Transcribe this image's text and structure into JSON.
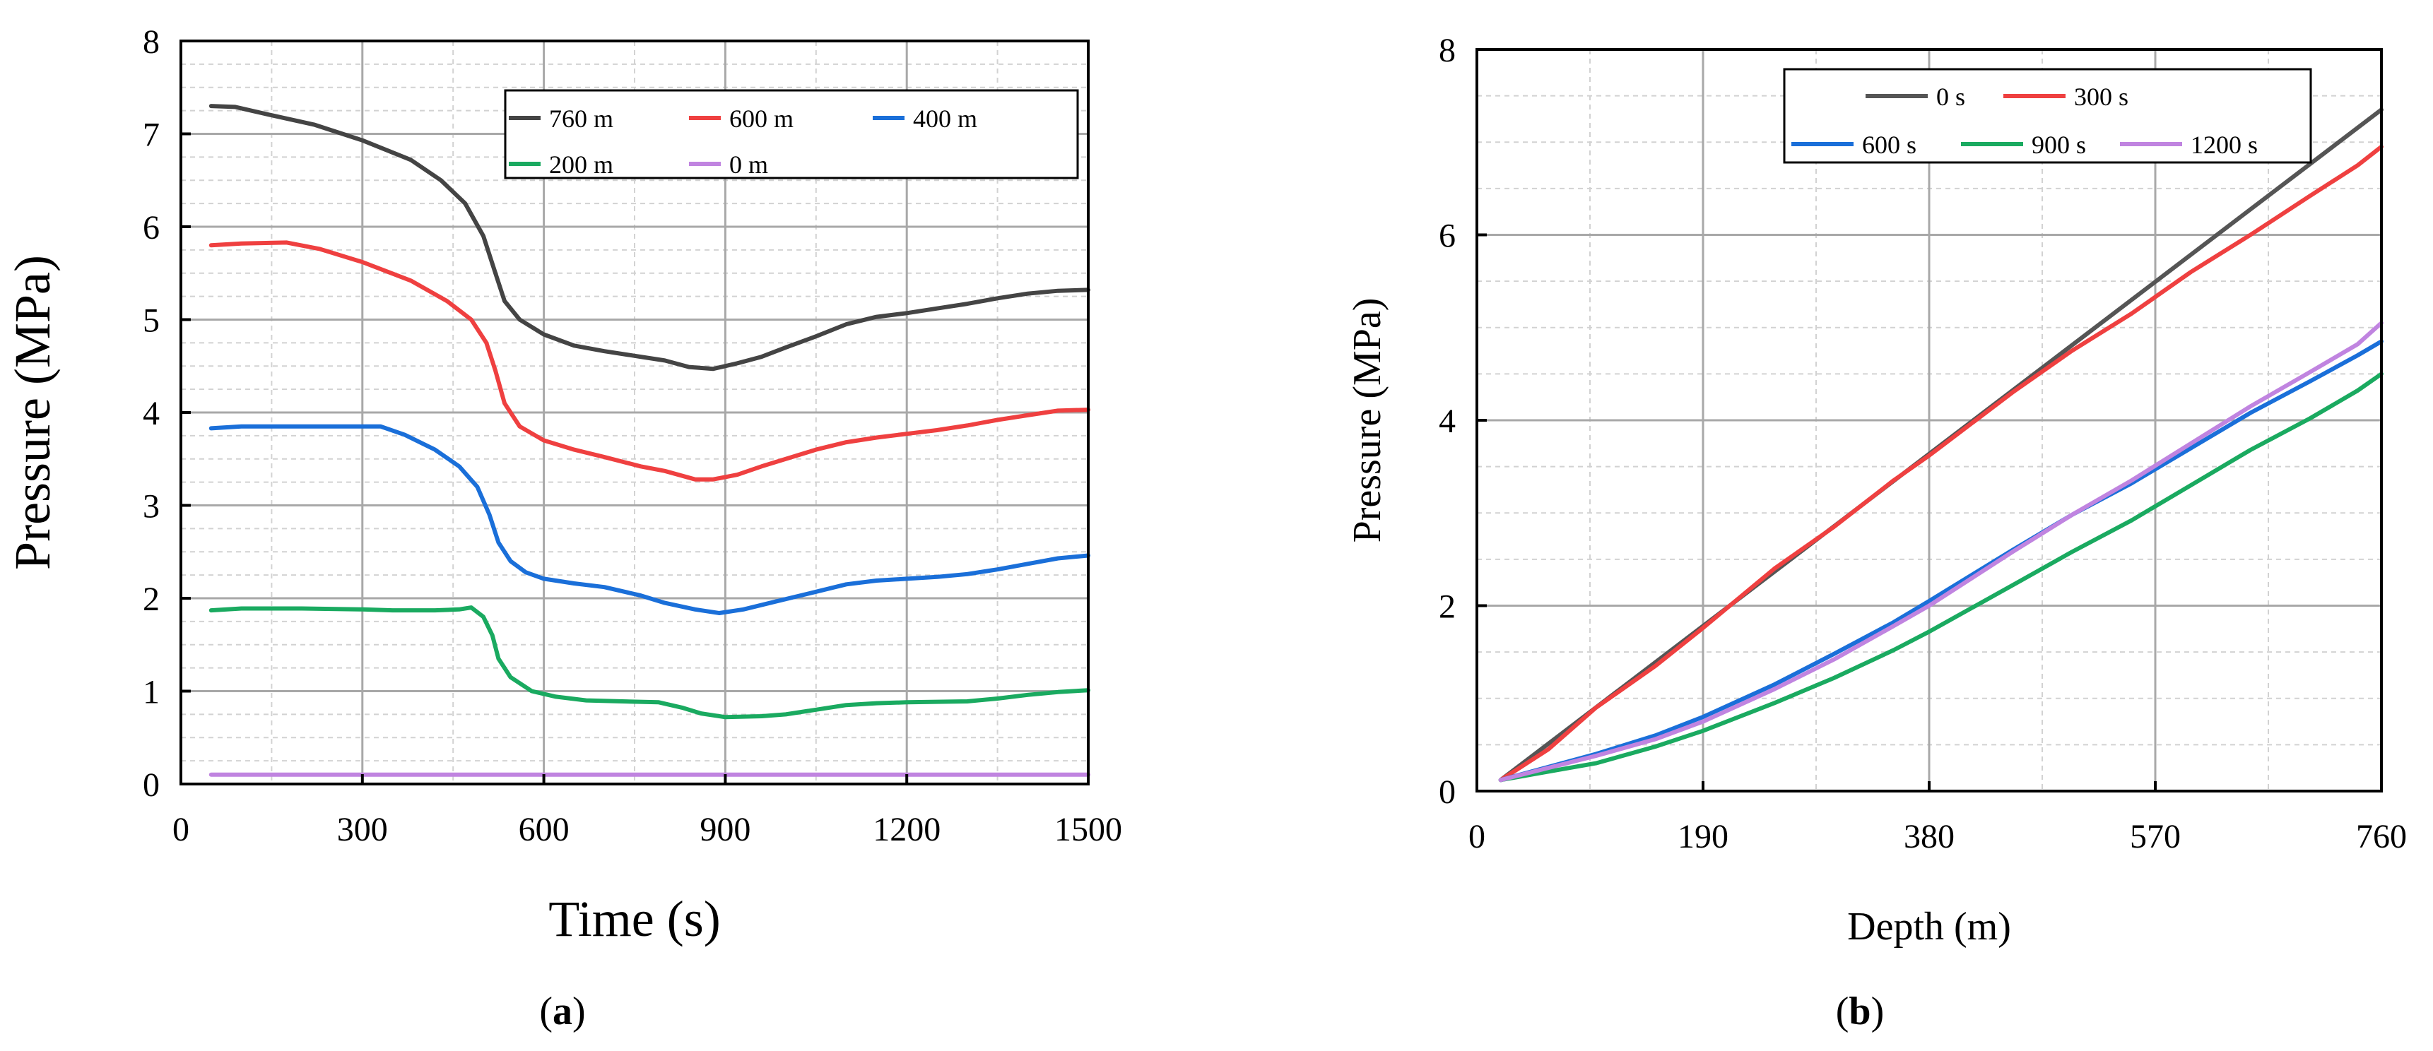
{
  "chart_data": [
    {
      "type": "line",
      "panel_label_letter": "a",
      "xlabel": "Time (s)",
      "ylabel": "Pressure (MPa)",
      "xlim": [
        0,
        1500
      ],
      "ylim": [
        0,
        8
      ],
      "xticks": [
        0,
        300,
        600,
        900,
        1200,
        1500
      ],
      "yticks": [
        0,
        1,
        2,
        3,
        4,
        5,
        6,
        7,
        8
      ],
      "x_minor_step": 150,
      "y_minor_step": 0.25,
      "grid": true,
      "legend_position": "top-right",
      "series": [
        {
          "name": "760 m",
          "color": "#444444",
          "points": [
            [
              50,
              7.3
            ],
            [
              90,
              7.29
            ],
            [
              150,
              7.2
            ],
            [
              220,
              7.1
            ],
            [
              300,
              6.93
            ],
            [
              380,
              6.72
            ],
            [
              430,
              6.5
            ],
            [
              470,
              6.25
            ],
            [
              500,
              5.9
            ],
            [
              520,
              5.5
            ],
            [
              535,
              5.2
            ],
            [
              560,
              5.0
            ],
            [
              600,
              4.84
            ],
            [
              650,
              4.72
            ],
            [
              700,
              4.66
            ],
            [
              760,
              4.6
            ],
            [
              800,
              4.56
            ],
            [
              840,
              4.49
            ],
            [
              880,
              4.47
            ],
            [
              920,
              4.53
            ],
            [
              960,
              4.6
            ],
            [
              1000,
              4.7
            ],
            [
              1050,
              4.82
            ],
            [
              1100,
              4.95
            ],
            [
              1150,
              5.03
            ],
            [
              1200,
              5.07
            ],
            [
              1250,
              5.12
            ],
            [
              1300,
              5.17
            ],
            [
              1350,
              5.23
            ],
            [
              1400,
              5.28
            ],
            [
              1450,
              5.31
            ],
            [
              1500,
              5.32
            ]
          ]
        },
        {
          "name": "600 m",
          "color": "#ef4040",
          "points": [
            [
              50,
              5.8
            ],
            [
              100,
              5.82
            ],
            [
              175,
              5.83
            ],
            [
              230,
              5.76
            ],
            [
              300,
              5.62
            ],
            [
              380,
              5.42
            ],
            [
              440,
              5.2
            ],
            [
              480,
              5.0
            ],
            [
              505,
              4.75
            ],
            [
              520,
              4.45
            ],
            [
              535,
              4.1
            ],
            [
              560,
              3.85
            ],
            [
              600,
              3.7
            ],
            [
              650,
              3.6
            ],
            [
              700,
              3.52
            ],
            [
              760,
              3.42
            ],
            [
              800,
              3.37
            ],
            [
              850,
              3.28
            ],
            [
              880,
              3.28
            ],
            [
              920,
              3.33
            ],
            [
              960,
              3.42
            ],
            [
              1000,
              3.5
            ],
            [
              1050,
              3.6
            ],
            [
              1100,
              3.68
            ],
            [
              1150,
              3.73
            ],
            [
              1200,
              3.77
            ],
            [
              1250,
              3.81
            ],
            [
              1300,
              3.86
            ],
            [
              1350,
              3.92
            ],
            [
              1400,
              3.97
            ],
            [
              1450,
              4.02
            ],
            [
              1500,
              4.03
            ]
          ]
        },
        {
          "name": "400 m",
          "color": "#1a6fd9",
          "points": [
            [
              50,
              3.83
            ],
            [
              100,
              3.85
            ],
            [
              200,
              3.85
            ],
            [
              330,
              3.85
            ],
            [
              370,
              3.76
            ],
            [
              420,
              3.6
            ],
            [
              460,
              3.42
            ],
            [
              490,
              3.2
            ],
            [
              510,
              2.9
            ],
            [
              525,
              2.6
            ],
            [
              545,
              2.4
            ],
            [
              570,
              2.28
            ],
            [
              600,
              2.21
            ],
            [
              650,
              2.16
            ],
            [
              700,
              2.12
            ],
            [
              760,
              2.03
            ],
            [
              800,
              1.95
            ],
            [
              850,
              1.88
            ],
            [
              890,
              1.84
            ],
            [
              930,
              1.88
            ],
            [
              980,
              1.96
            ],
            [
              1050,
              2.07
            ],
            [
              1100,
              2.15
            ],
            [
              1150,
              2.19
            ],
            [
              1200,
              2.21
            ],
            [
              1250,
              2.23
            ],
            [
              1300,
              2.26
            ],
            [
              1350,
              2.31
            ],
            [
              1400,
              2.37
            ],
            [
              1450,
              2.43
            ],
            [
              1500,
              2.46
            ]
          ]
        },
        {
          "name": "200 m",
          "color": "#1aaa60",
          "points": [
            [
              50,
              1.87
            ],
            [
              100,
              1.89
            ],
            [
              200,
              1.89
            ],
            [
              300,
              1.88
            ],
            [
              350,
              1.87
            ],
            [
              420,
              1.87
            ],
            [
              460,
              1.88
            ],
            [
              480,
              1.9
            ],
            [
              500,
              1.8
            ],
            [
              515,
              1.6
            ],
            [
              525,
              1.35
            ],
            [
              545,
              1.15
            ],
            [
              580,
              1.0
            ],
            [
              620,
              0.94
            ],
            [
              670,
              0.9
            ],
            [
              730,
              0.89
            ],
            [
              790,
              0.88
            ],
            [
              830,
              0.82
            ],
            [
              860,
              0.76
            ],
            [
              900,
              0.72
            ],
            [
              960,
              0.73
            ],
            [
              1000,
              0.75
            ],
            [
              1050,
              0.8
            ],
            [
              1100,
              0.85
            ],
            [
              1150,
              0.87
            ],
            [
              1200,
              0.88
            ],
            [
              1300,
              0.89
            ],
            [
              1350,
              0.92
            ],
            [
              1400,
              0.96
            ],
            [
              1450,
              0.99
            ],
            [
              1500,
              1.01
            ]
          ]
        },
        {
          "name": "0 m",
          "color": "#c084e0",
          "points": [
            [
              50,
              0.1
            ],
            [
              1500,
              0.1
            ]
          ]
        }
      ]
    },
    {
      "type": "line",
      "panel_label_letter": "b",
      "xlabel": "Depth (m)",
      "ylabel": "Pressure (MPa)",
      "xlim": [
        0,
        760
      ],
      "ylim": [
        0,
        8
      ],
      "xticks": [
        0,
        190,
        380,
        570,
        760
      ],
      "yticks": [
        0,
        2,
        4,
        6,
        8
      ],
      "x_minor_step": 95,
      "y_minor_step": 0.5,
      "grid": true,
      "legend_position": "top-center",
      "series": [
        {
          "name": "0 s",
          "color": "#555555",
          "points": [
            [
              20,
              0.12
            ],
            [
              760,
              7.35
            ]
          ]
        },
        {
          "name": "300 s",
          "color": "#ef4040",
          "points": [
            [
              20,
              0.12
            ],
            [
              60,
              0.45
            ],
            [
              100,
              0.9
            ],
            [
              150,
              1.35
            ],
            [
              190,
              1.76
            ],
            [
              250,
              2.4
            ],
            [
              300,
              2.85
            ],
            [
              350,
              3.35
            ],
            [
              380,
              3.62
            ],
            [
              450,
              4.3
            ],
            [
              500,
              4.75
            ],
            [
              550,
              5.15
            ],
            [
              600,
              5.6
            ],
            [
              650,
              6.0
            ],
            [
              700,
              6.42
            ],
            [
              740,
              6.75
            ],
            [
              760,
              6.95
            ]
          ]
        },
        {
          "name": "600 s",
          "color": "#1a6fd9",
          "points": [
            [
              20,
              0.12
            ],
            [
              100,
              0.4
            ],
            [
              150,
              0.6
            ],
            [
              190,
              0.8
            ],
            [
              250,
              1.15
            ],
            [
              300,
              1.48
            ],
            [
              350,
              1.82
            ],
            [
              380,
              2.05
            ],
            [
              450,
              2.6
            ],
            [
              500,
              2.98
            ],
            [
              550,
              3.32
            ],
            [
              600,
              3.7
            ],
            [
              650,
              4.08
            ],
            [
              700,
              4.42
            ],
            [
              740,
              4.7
            ],
            [
              760,
              4.85
            ]
          ]
        },
        {
          "name": "900 s",
          "color": "#1aaa60",
          "points": [
            [
              20,
              0.12
            ],
            [
              100,
              0.3
            ],
            [
              150,
              0.48
            ],
            [
              190,
              0.65
            ],
            [
              250,
              0.95
            ],
            [
              300,
              1.22
            ],
            [
              350,
              1.52
            ],
            [
              380,
              1.72
            ],
            [
              450,
              2.22
            ],
            [
              500,
              2.58
            ],
            [
              550,
              2.92
            ],
            [
              600,
              3.3
            ],
            [
              650,
              3.68
            ],
            [
              700,
              4.02
            ],
            [
              740,
              4.32
            ],
            [
              760,
              4.5
            ]
          ]
        },
        {
          "name": "1200 s",
          "color": "#c084e0",
          "points": [
            [
              20,
              0.12
            ],
            [
              100,
              0.38
            ],
            [
              150,
              0.56
            ],
            [
              190,
              0.75
            ],
            [
              250,
              1.1
            ],
            [
              300,
              1.42
            ],
            [
              350,
              1.78
            ],
            [
              380,
              2.0
            ],
            [
              450,
              2.58
            ],
            [
              500,
              2.98
            ],
            [
              550,
              3.35
            ],
            [
              600,
              3.75
            ],
            [
              650,
              4.15
            ],
            [
              700,
              4.52
            ],
            [
              740,
              4.82
            ],
            [
              760,
              5.05
            ]
          ]
        }
      ]
    }
  ]
}
